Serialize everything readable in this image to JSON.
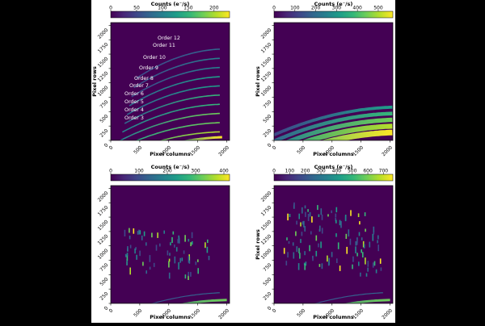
{
  "figure": {
    "background": "#ffffff",
    "outer_background": "#000000"
  },
  "colormap": [
    "#440154",
    "#482878",
    "#3e4989",
    "#31688e",
    "#26828e",
    "#1f9e89",
    "#35b779",
    "#6ece58",
    "#b5de2b",
    "#fde725"
  ],
  "chart_data": [
    {
      "type": "heatmap",
      "id": "p1",
      "xlabel": "Pixel columns",
      "ylabel": "Pixel rows",
      "xlim": [
        0,
        2048
      ],
      "ylim": [
        0,
        2048
      ],
      "xticks": [
        "0",
        "500",
        "1000",
        "1500",
        "2000"
      ],
      "yticks": [
        "0",
        "250",
        "500",
        "750",
        "1000",
        "1250",
        "1500",
        "1750",
        "2000"
      ],
      "colorbar": {
        "label": "Counts (e⁻/s)",
        "range": [
          0,
          230
        ],
        "ticks": [
          "0",
          "50",
          "100",
          "150",
          "200"
        ]
      },
      "annotations": [
        "Order 12",
        "Order 11",
        "Order 10",
        "Order 9",
        "Order 8",
        "Order 7",
        "Order 6",
        "Order 5",
        "Order 4",
        "Order 3"
      ]
    },
    {
      "type": "heatmap",
      "id": "p2",
      "xlabel": "Pixel columns",
      "ylabel": "Pixel rows",
      "xlim": [
        0,
        2048
      ],
      "ylim": [
        0,
        2048
      ],
      "xticks": [
        "0",
        "500",
        "1000",
        "1500",
        "2000"
      ],
      "yticks": [
        "0",
        "250",
        "500",
        "750",
        "1000",
        "1250",
        "1500",
        "1750",
        "2000"
      ],
      "colorbar": {
        "label": "Counts (e⁻/s)",
        "range": [
          0,
          570
        ],
        "ticks": [
          "0",
          "100",
          "200",
          "300",
          "400",
          "500"
        ]
      },
      "annotations": []
    },
    {
      "type": "heatmap",
      "id": "p3",
      "xlabel": "Pixel columns",
      "ylabel": "",
      "xlim": [
        0,
        2048
      ],
      "ylim": [
        0,
        2048
      ],
      "xticks": [
        "0",
        "500",
        "1000",
        "1500",
        "2000"
      ],
      "yticks": [
        "0",
        "250",
        "500",
        "750",
        "1000",
        "1250",
        "1500",
        "1750",
        "2000"
      ],
      "colorbar": {
        "label": "Counts (e⁻/s)",
        "range": [
          0,
          420
        ],
        "ticks": [
          "0",
          "100",
          "200",
          "300",
          "400"
        ]
      },
      "annotations": []
    },
    {
      "type": "heatmap",
      "id": "p4",
      "xlabel": "Pixel columns",
      "ylabel": "Pixel rows",
      "xlim": [
        0,
        2048
      ],
      "ylim": [
        0,
        2048
      ],
      "xticks": [
        "0",
        "500",
        "1000",
        "1500",
        "2000"
      ],
      "yticks": [
        "0",
        "250",
        "500",
        "750",
        "1000",
        "1250",
        "1500",
        "1750",
        "2000"
      ],
      "colorbar": {
        "label": "Counts (e⁻/s)",
        "range": [
          0,
          760
        ],
        "ticks": [
          "0",
          "100",
          "200",
          "300",
          "400",
          "500",
          "600",
          "700"
        ]
      },
      "annotations": []
    }
  ]
}
